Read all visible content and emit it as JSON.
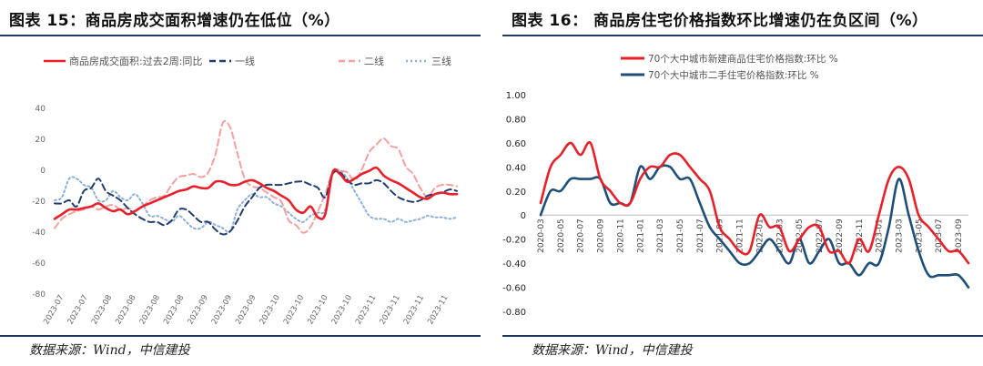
{
  "left": {
    "title": "图表 15：商品房成交面积增速仍在低位（%）",
    "source": "数据来源：Wind，中信建投",
    "chart_data": {
      "type": "line",
      "title": "图表 15：商品房成交面积增速仍在低位（%）",
      "ylim": [
        -80,
        40
      ],
      "yticks": [
        40,
        20,
        0,
        -20,
        -40,
        -60,
        -80
      ],
      "xticklabels": [
        "2023-07",
        "2023-07",
        "2023-08",
        "2023-08",
        "2023-08",
        "2023-08",
        "2023-09",
        "2023-09",
        "2023-09",
        "2023-10",
        "2023-10",
        "2023-10",
        "2023-10",
        "2023-11",
        "2023-11",
        "2023-11",
        "2023-11"
      ],
      "legend_position": "top",
      "series": [
        {
          "name": "商品房成交面积:过去2周:同比",
          "color": "#e8202a",
          "dash": "solid",
          "values": [
            -32,
            -29,
            -26,
            -26,
            -25,
            -24,
            -22,
            -25,
            -27,
            -26,
            -29,
            -27,
            -24,
            -22,
            -20,
            -18,
            -16,
            -14,
            -13,
            -11,
            -12,
            -12,
            -8,
            -8,
            -10,
            -10,
            -8,
            -7,
            -9,
            -12,
            -14,
            -17,
            -20,
            -26,
            -28,
            -24,
            -31,
            -29,
            -2,
            -3,
            -8,
            -6,
            -3,
            -1,
            1,
            -4,
            -7,
            -9,
            -12,
            -15,
            -18,
            -19,
            -16,
            -15,
            -16,
            -16
          ]
        },
        {
          "name": "一线",
          "color": "#1f3e6e",
          "dash": "dash",
          "values": [
            -22,
            -22,
            -20,
            -24,
            -14,
            -12,
            -6,
            -14,
            -17,
            -20,
            -25,
            -29,
            -32,
            -34,
            -34,
            -36,
            -33,
            -26,
            -26,
            -30,
            -34,
            -34,
            -39,
            -42,
            -40,
            -33,
            -24,
            -18,
            -12,
            -10,
            -10,
            -10,
            -9,
            -8,
            -8,
            -10,
            -12,
            -18,
            -3,
            -2,
            -7,
            -10,
            -9,
            -9,
            -7,
            -9,
            -14,
            -18,
            -20,
            -21,
            -20,
            -17,
            -16,
            -15,
            -13,
            -14
          ]
        },
        {
          "name": "二线",
          "color": "#f4a0a0",
          "dash": "dash",
          "values": [
            -38,
            -32,
            -29,
            -27,
            -26,
            -24,
            -26,
            -24,
            -23,
            -26,
            -25,
            -27,
            -24,
            -20,
            -18,
            -17,
            -10,
            -5,
            -4,
            -3,
            -5,
            -2,
            10,
            30,
            27,
            10,
            -6,
            -11,
            -12,
            -15,
            -18,
            -21,
            -33,
            -36,
            -41,
            -37,
            -27,
            -16,
            -2,
            -1,
            -2,
            -7,
            0,
            11,
            16,
            20,
            15,
            13,
            2,
            -3,
            -12,
            -18,
            -12,
            -10,
            -10,
            -11
          ]
        },
        {
          "name": "三线",
          "color": "#8cb0d8",
          "dash": "dot",
          "values": [
            -20,
            -18,
            -6,
            -6,
            -10,
            -12,
            -20,
            -20,
            -14,
            -18,
            -20,
            -16,
            -22,
            -30,
            -30,
            -32,
            -34,
            -30,
            -34,
            -38,
            -38,
            -34,
            -36,
            -38,
            -40,
            -26,
            -20,
            -16,
            -18,
            -18,
            -22,
            -24,
            -28,
            -32,
            -34,
            -30,
            -28,
            -26,
            -2,
            -1,
            -6,
            -14,
            -22,
            -30,
            -32,
            -32,
            -34,
            -32,
            -34,
            -33,
            -32,
            -30,
            -31,
            -31,
            -32,
            -31
          ]
        }
      ]
    }
  },
  "right": {
    "title": "图表 16： 商品房住宅价格指数环比增速仍在负区间（%）",
    "source": "数据来源：Wind，中信建投",
    "chart_data": {
      "type": "line",
      "title": "图表 16： 商品房住宅价格指数环比增速仍在负区间（%）",
      "ylim": [
        -0.8,
        1.0
      ],
      "yticks": [
        "1.00",
        "0.80",
        "0.60",
        "0.40",
        "0.20",
        "0",
        "-0.20",
        "-0.40",
        "-0.60",
        "-0.80"
      ],
      "categories": [
        "2020-03",
        "2020-04",
        "2020-05",
        "2020-06",
        "2020-07",
        "2020-08",
        "2020-09",
        "2020-10",
        "2020-11",
        "2020-12",
        "2021-01",
        "2021-02",
        "2021-03",
        "2021-04",
        "2021-05",
        "2021-06",
        "2021-07",
        "2021-08",
        "2021-09",
        "2021-10",
        "2021-11",
        "2021-12",
        "2022-01",
        "2022-02",
        "2022-03",
        "2022-04",
        "2022-05",
        "2022-06",
        "2022-07",
        "2022-08",
        "2022-09",
        "2022-10",
        "2022-11",
        "2022-12",
        "2023-01",
        "2023-02",
        "2023-03",
        "2023-04",
        "2023-05",
        "2023-06",
        "2023-07",
        "2023-08",
        "2023-09",
        "2023-10"
      ],
      "xticklabels": [
        "2020-03",
        "2020-05",
        "2020-07",
        "2020-09",
        "2020-11",
        "2021-01",
        "2021-03",
        "2021-05",
        "2021-07",
        "2021-09",
        "2021-11",
        "2022-01",
        "2022-03",
        "2022-05",
        "2022-07",
        "2022-09",
        "2022-11",
        "2023-01",
        "2023-03",
        "2023-05",
        "2023-07",
        "2023-09"
      ],
      "legend_position": "top",
      "series": [
        {
          "name": "70个大中城市新建商品住宅价格指数:环比 %",
          "color": "#e8202a",
          "dash": "solid",
          "values": [
            0.1,
            0.4,
            0.5,
            0.6,
            0.5,
            0.6,
            0.3,
            0.2,
            0.1,
            0.1,
            0.3,
            0.4,
            0.4,
            0.5,
            0.5,
            0.4,
            0.3,
            0.2,
            -0.1,
            -0.2,
            -0.3,
            -0.3,
            0.0,
            -0.1,
            -0.1,
            -0.3,
            -0.2,
            -0.1,
            -0.1,
            -0.3,
            -0.3,
            -0.4,
            -0.2,
            -0.3,
            0.0,
            0.3,
            0.4,
            0.3,
            0.0,
            -0.1,
            -0.2,
            -0.3,
            -0.3,
            -0.4
          ]
        },
        {
          "name": "70个大中城市二手住宅价格指数:环比 %",
          "color": "#1f4e79",
          "dash": "solid",
          "values": [
            0.0,
            0.2,
            0.2,
            0.3,
            0.3,
            0.3,
            0.3,
            0.1,
            0.1,
            0.1,
            0.4,
            0.3,
            0.4,
            0.4,
            0.3,
            0.3,
            0.1,
            -0.1,
            -0.2,
            -0.3,
            -0.4,
            -0.4,
            -0.3,
            -0.2,
            -0.3,
            -0.4,
            -0.2,
            -0.4,
            -0.3,
            -0.2,
            -0.4,
            -0.4,
            -0.5,
            -0.4,
            -0.4,
            -0.1,
            0.3,
            0.0,
            -0.3,
            -0.5,
            -0.5,
            -0.5,
            -0.5,
            -0.6
          ]
        }
      ]
    }
  }
}
